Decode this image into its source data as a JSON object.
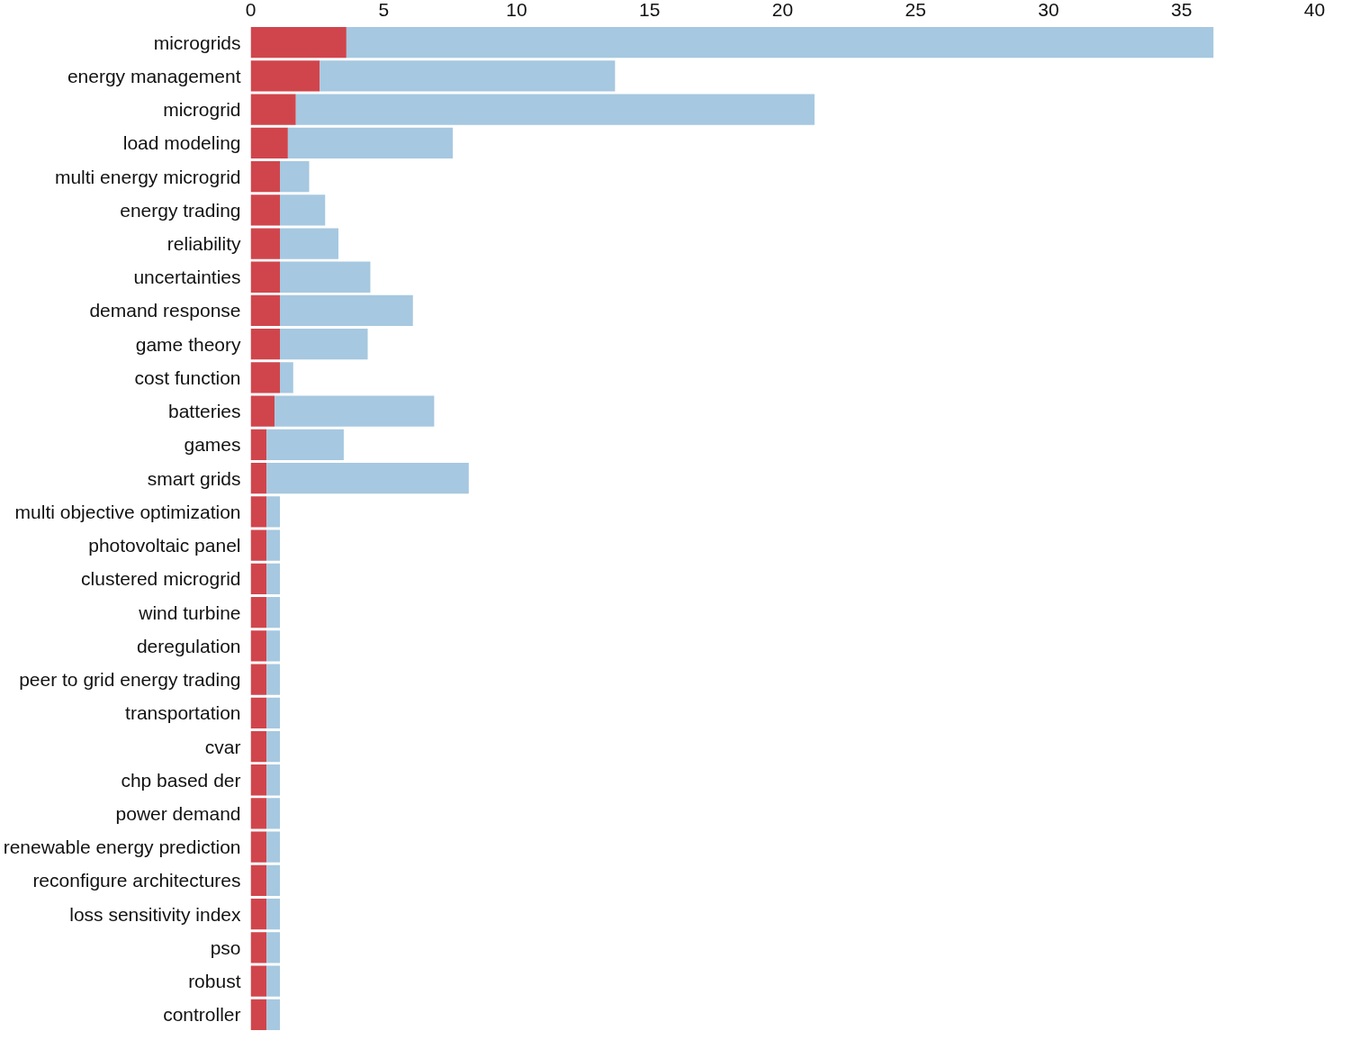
{
  "chart_data": {
    "type": "bar",
    "orientation": "horizontal",
    "stacked": true,
    "categories": [
      "microgrids",
      "energy management",
      "microgrid",
      "load modeling",
      "multi energy microgrid",
      "energy trading",
      "reliability",
      "uncertainties",
      "demand response",
      "game theory",
      "cost function",
      "batteries",
      "games",
      "smart grids",
      "multi objective optimization",
      "photovoltaic panel",
      "clustered microgrid",
      "wind turbine",
      "deregulation",
      "peer to grid energy trading",
      "transportation",
      "cvar",
      "chp based der",
      "power demand",
      "renewable energy prediction",
      "reconfigure architectures",
      "loss sensitivity index",
      "pso",
      "robust",
      "controller"
    ],
    "series": [
      {
        "color": "#d0454c",
        "values": [
          3.6,
          2.6,
          1.7,
          1.4,
          1.1,
          1.1,
          1.1,
          1.1,
          1.1,
          1.1,
          1.1,
          0.9,
          0.6,
          0.6,
          0.6,
          0.6,
          0.6,
          0.6,
          0.6,
          0.6,
          0.6,
          0.6,
          0.6,
          0.6,
          0.6,
          0.6,
          0.6,
          0.6,
          0.6,
          0.6
        ]
      },
      {
        "color": "#a6c8e0",
        "values": [
          32.6,
          11.1,
          19.5,
          6.2,
          1.1,
          1.7,
          2.2,
          3.4,
          5.0,
          3.3,
          0.5,
          6.0,
          2.9,
          7.6,
          0.5,
          0.5,
          0.5,
          0.5,
          0.5,
          0.5,
          0.5,
          0.5,
          0.5,
          0.5,
          0.5,
          0.5,
          0.5,
          0.5,
          0.5,
          0.5
        ]
      }
    ],
    "xlim": [
      0,
      40
    ],
    "xticks": [
      0,
      5,
      10,
      15,
      20,
      25,
      30,
      35,
      40
    ],
    "grid": false
  }
}
